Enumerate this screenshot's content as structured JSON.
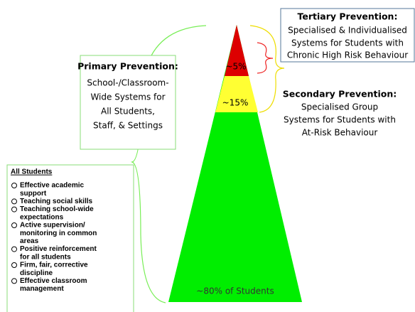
{
  "pyramid": {
    "tertiary_label": "~5%",
    "secondary_label": "~15%",
    "primary_label": "~80% of Students"
  },
  "tertiary": {
    "title": "Tertiary Prevention:",
    "lines": [
      "Specialised & Individualised",
      "Systems for Students with",
      "Chronic High Risk Behaviour"
    ]
  },
  "secondary": {
    "title": "Secondary Prevention:",
    "lines": [
      "Specialised Group",
      "Systems for Students with",
      "At-Risk Behaviour"
    ]
  },
  "primary": {
    "title": "Primary Prevention:",
    "lines": [
      "School-/Classroom-",
      "Wide Systems for",
      "All Students,",
      "Staff, & Settings"
    ]
  },
  "all_students": {
    "title": "All Students",
    "items": [
      [
        "Effective academic",
        "support"
      ],
      [
        "Teaching social skills"
      ],
      [
        "Teaching school-wide",
        "expectations"
      ],
      [
        "Active supervision/",
        "monitoring in common",
        "areas"
      ],
      [
        "Positive reinforcement",
        "for all students"
      ],
      [
        "Firm, fair, corrective",
        "discipline"
      ],
      [
        "Effective classroom",
        "management"
      ]
    ]
  }
}
